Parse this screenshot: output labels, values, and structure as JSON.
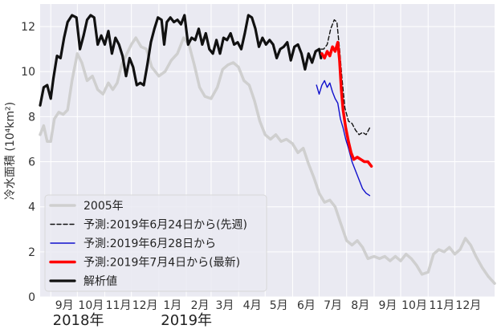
{
  "chart_data": {
    "type": "line",
    "ylabel": "冷水面積 (10⁴km²)",
    "ylim": [
      0,
      13
    ],
    "y_ticks": [
      "0",
      "2",
      "4",
      "6",
      "8",
      "10",
      "12"
    ],
    "y_tick_values": [
      0,
      2,
      4,
      6,
      8,
      10,
      12
    ],
    "xlim": [
      "2018-08-20",
      "2020-01-15"
    ],
    "month_ticks": [
      {
        "date": "2018-09-01",
        "label": "9月"
      },
      {
        "date": "2018-10-01",
        "label": "10月"
      },
      {
        "date": "2018-11-01",
        "label": "11月"
      },
      {
        "date": "2018-12-01",
        "label": "12月"
      },
      {
        "date": "2019-01-01",
        "label": "1月"
      },
      {
        "date": "2019-02-01",
        "label": "2月"
      },
      {
        "date": "2019-03-01",
        "label": "3月"
      },
      {
        "date": "2019-04-01",
        "label": "4月"
      },
      {
        "date": "2019-05-01",
        "label": "5月"
      },
      {
        "date": "2019-06-01",
        "label": "6月"
      },
      {
        "date": "2019-07-01",
        "label": "7月"
      },
      {
        "date": "2019-08-01",
        "label": "8月"
      },
      {
        "date": "2019-09-01",
        "label": "9月"
      },
      {
        "date": "2019-10-01",
        "label": "10月"
      },
      {
        "date": "2019-11-01",
        "label": "11月"
      },
      {
        "date": "2019-12-01",
        "label": "12月"
      }
    ],
    "year_labels": [
      {
        "date": "2018-09-05",
        "label": "2018年"
      },
      {
        "date": "2019-01-05",
        "label": "2019年"
      }
    ],
    "grid": true,
    "legend_position": "bottom-left",
    "series": [
      {
        "name": "2005年",
        "color": "#cfcfcf",
        "style": "solid",
        "points": [
          [
            "2018-08-20",
            7.2
          ],
          [
            "2018-08-24",
            7.6
          ],
          [
            "2018-08-28",
            6.9
          ],
          [
            "2018-09-01",
            6.9
          ],
          [
            "2018-09-05",
            7.9
          ],
          [
            "2018-09-10",
            8.2
          ],
          [
            "2018-09-15",
            8.1
          ],
          [
            "2018-09-20",
            8.3
          ],
          [
            "2018-09-25",
            9.6
          ],
          [
            "2018-10-01",
            10.8
          ],
          [
            "2018-10-06",
            10.4
          ],
          [
            "2018-10-12",
            9.6
          ],
          [
            "2018-10-18",
            9.8
          ],
          [
            "2018-10-24",
            9.2
          ],
          [
            "2018-10-30",
            9.0
          ],
          [
            "2018-11-05",
            9.5
          ],
          [
            "2018-11-10",
            9.2
          ],
          [
            "2018-11-15",
            9.5
          ],
          [
            "2018-11-20",
            10.3
          ],
          [
            "2018-11-26",
            10.8
          ],
          [
            "2018-12-01",
            11.2
          ],
          [
            "2018-12-06",
            11.5
          ],
          [
            "2018-12-12",
            11.1
          ],
          [
            "2018-12-18",
            11.0
          ],
          [
            "2018-12-24",
            10.2
          ],
          [
            "2019-01-01",
            9.8
          ],
          [
            "2019-01-08",
            10.0
          ],
          [
            "2019-01-15",
            10.5
          ],
          [
            "2019-01-22",
            10.8
          ],
          [
            "2019-01-29",
            11.5
          ],
          [
            "2019-02-04",
            11.2
          ],
          [
            "2019-02-10",
            10.3
          ],
          [
            "2019-02-16",
            9.3
          ],
          [
            "2019-02-22",
            8.9
          ],
          [
            "2019-03-01",
            8.8
          ],
          [
            "2019-03-08",
            9.3
          ],
          [
            "2019-03-14",
            10.1
          ],
          [
            "2019-03-20",
            10.3
          ],
          [
            "2019-03-26",
            10.4
          ],
          [
            "2019-04-01",
            10.2
          ],
          [
            "2019-04-07",
            9.6
          ],
          [
            "2019-04-13",
            9.4
          ],
          [
            "2019-04-19",
            8.7
          ],
          [
            "2019-04-25",
            7.8
          ],
          [
            "2019-05-01",
            7.2
          ],
          [
            "2019-05-07",
            7.0
          ],
          [
            "2019-05-13",
            7.2
          ],
          [
            "2019-05-19",
            6.9
          ],
          [
            "2019-05-25",
            7.0
          ],
          [
            "2019-06-01",
            6.8
          ],
          [
            "2019-06-07",
            6.4
          ],
          [
            "2019-06-13",
            6.6
          ],
          [
            "2019-06-19",
            5.9
          ],
          [
            "2019-06-25",
            5.3
          ],
          [
            "2019-07-01",
            4.6
          ],
          [
            "2019-07-07",
            4.2
          ],
          [
            "2019-07-13",
            4.3
          ],
          [
            "2019-07-19",
            4.0
          ],
          [
            "2019-07-25",
            3.3
          ],
          [
            "2019-08-01",
            2.5
          ],
          [
            "2019-08-07",
            2.3
          ],
          [
            "2019-08-13",
            2.5
          ],
          [
            "2019-08-19",
            2.2
          ],
          [
            "2019-08-25",
            1.7
          ],
          [
            "2019-09-01",
            1.8
          ],
          [
            "2019-09-07",
            1.7
          ],
          [
            "2019-09-13",
            1.8
          ],
          [
            "2019-09-19",
            1.6
          ],
          [
            "2019-09-25",
            1.8
          ],
          [
            "2019-10-01",
            1.6
          ],
          [
            "2019-10-07",
            1.9
          ],
          [
            "2019-10-13",
            1.7
          ],
          [
            "2019-10-19",
            1.4
          ],
          [
            "2019-10-25",
            1.0
          ],
          [
            "2019-11-01",
            1.1
          ],
          [
            "2019-11-07",
            1.9
          ],
          [
            "2019-11-13",
            2.1
          ],
          [
            "2019-11-19",
            2.0
          ],
          [
            "2019-11-25",
            2.2
          ],
          [
            "2019-12-01",
            1.9
          ],
          [
            "2019-12-07",
            2.1
          ],
          [
            "2019-12-13",
            2.6
          ],
          [
            "2019-12-19",
            2.3
          ],
          [
            "2019-12-25",
            1.8
          ],
          [
            "2020-01-01",
            1.3
          ],
          [
            "2020-01-08",
            0.9
          ],
          [
            "2020-01-15",
            0.6
          ]
        ]
      },
      {
        "name": "予測:2019年6月24日から(先週)",
        "color": "#111111",
        "style": "dashed",
        "points": [
          [
            "2019-06-24",
            10.6
          ],
          [
            "2019-06-28",
            10.9
          ],
          [
            "2019-07-02",
            11.0
          ],
          [
            "2019-07-06",
            11.0
          ],
          [
            "2019-07-10",
            11.2
          ],
          [
            "2019-07-14",
            11.9
          ],
          [
            "2019-07-18",
            12.3
          ],
          [
            "2019-07-21",
            12.2
          ],
          [
            "2019-07-24",
            11.0
          ],
          [
            "2019-07-27",
            9.6
          ],
          [
            "2019-07-30",
            8.4
          ],
          [
            "2019-08-03",
            7.8
          ],
          [
            "2019-08-07",
            7.7
          ],
          [
            "2019-08-11",
            7.4
          ],
          [
            "2019-08-15",
            7.2
          ],
          [
            "2019-08-19",
            7.3
          ],
          [
            "2019-08-23",
            7.2
          ],
          [
            "2019-08-27",
            7.5
          ]
        ]
      },
      {
        "name": "予測:2019年6月28日から",
        "color": "#1010cc",
        "style": "solid",
        "points": [
          [
            "2019-06-28",
            9.4
          ],
          [
            "2019-07-01",
            9.0
          ],
          [
            "2019-07-04",
            9.4
          ],
          [
            "2019-07-07",
            9.6
          ],
          [
            "2019-07-10",
            9.3
          ],
          [
            "2019-07-13",
            9.5
          ],
          [
            "2019-07-16",
            9.1
          ],
          [
            "2019-07-19",
            8.8
          ],
          [
            "2019-07-22",
            8.6
          ],
          [
            "2019-07-25",
            7.9
          ],
          [
            "2019-07-28",
            7.5
          ],
          [
            "2019-07-31",
            7.0
          ],
          [
            "2019-08-03",
            6.6
          ],
          [
            "2019-08-07",
            6.0
          ],
          [
            "2019-08-11",
            5.6
          ],
          [
            "2019-08-15",
            5.2
          ],
          [
            "2019-08-19",
            4.8
          ],
          [
            "2019-08-23",
            4.6
          ],
          [
            "2019-08-27",
            4.5
          ]
        ]
      },
      {
        "name": "予測:2019年7月4日から(最新)",
        "color": "#ff0000",
        "style": "solid",
        "points": [
          [
            "2019-07-04",
            10.8
          ],
          [
            "2019-07-07",
            10.6
          ],
          [
            "2019-07-10",
            10.9
          ],
          [
            "2019-07-13",
            10.7
          ],
          [
            "2019-07-16",
            11.1
          ],
          [
            "2019-07-19",
            10.9
          ],
          [
            "2019-07-22",
            11.3
          ],
          [
            "2019-07-24",
            10.5
          ],
          [
            "2019-07-26",
            9.2
          ],
          [
            "2019-07-28",
            8.3
          ],
          [
            "2019-07-31",
            7.5
          ],
          [
            "2019-08-03",
            6.9
          ],
          [
            "2019-08-06",
            6.4
          ],
          [
            "2019-08-09",
            6.1
          ],
          [
            "2019-08-13",
            6.2
          ],
          [
            "2019-08-17",
            6.1
          ],
          [
            "2019-08-21",
            6.0
          ],
          [
            "2019-08-25",
            6.0
          ],
          [
            "2019-08-29",
            5.8
          ]
        ]
      },
      {
        "name": "解析値",
        "color": "#111111",
        "style": "solid",
        "points": [
          [
            "2018-08-20",
            8.5
          ],
          [
            "2018-08-24",
            9.3
          ],
          [
            "2018-08-28",
            9.4
          ],
          [
            "2018-09-01",
            8.8
          ],
          [
            "2018-09-04",
            9.7
          ],
          [
            "2018-09-08",
            10.7
          ],
          [
            "2018-09-12",
            10.6
          ],
          [
            "2018-09-16",
            11.5
          ],
          [
            "2018-09-20",
            12.2
          ],
          [
            "2018-09-25",
            12.5
          ],
          [
            "2018-09-30",
            12.4
          ],
          [
            "2018-10-04",
            11.0
          ],
          [
            "2018-10-08",
            11.6
          ],
          [
            "2018-10-12",
            12.3
          ],
          [
            "2018-10-16",
            12.5
          ],
          [
            "2018-10-20",
            12.4
          ],
          [
            "2018-10-24",
            11.2
          ],
          [
            "2018-10-28",
            11.6
          ],
          [
            "2018-11-01",
            11.2
          ],
          [
            "2018-11-05",
            11.8
          ],
          [
            "2018-11-09",
            10.8
          ],
          [
            "2018-11-13",
            11.5
          ],
          [
            "2018-11-17",
            11.2
          ],
          [
            "2018-11-21",
            10.7
          ],
          [
            "2018-11-25",
            9.8
          ],
          [
            "2018-11-29",
            10.6
          ],
          [
            "2018-12-03",
            10.2
          ],
          [
            "2018-12-07",
            9.4
          ],
          [
            "2018-12-11",
            9.5
          ],
          [
            "2018-12-15",
            9.4
          ],
          [
            "2018-12-19",
            10.3
          ],
          [
            "2018-12-23",
            11.3
          ],
          [
            "2018-12-27",
            11.9
          ],
          [
            "2018-12-31",
            12.4
          ],
          [
            "2019-01-04",
            12.3
          ],
          [
            "2019-01-07",
            11.2
          ],
          [
            "2019-01-10",
            12.2
          ],
          [
            "2019-01-14",
            12.4
          ],
          [
            "2019-01-18",
            12.2
          ],
          [
            "2019-01-22",
            12.3
          ],
          [
            "2019-01-26",
            12.1
          ],
          [
            "2019-01-30",
            12.5
          ],
          [
            "2019-02-03",
            11.2
          ],
          [
            "2019-02-07",
            11.5
          ],
          [
            "2019-02-11",
            11.4
          ],
          [
            "2019-02-15",
            11.9
          ],
          [
            "2019-02-19",
            11.2
          ],
          [
            "2019-02-23",
            11.7
          ],
          [
            "2019-02-27",
            11.0
          ],
          [
            "2019-03-03",
            10.8
          ],
          [
            "2019-03-07",
            11.4
          ],
          [
            "2019-03-11",
            10.8
          ],
          [
            "2019-03-15",
            11.5
          ],
          [
            "2019-03-19",
            11.4
          ],
          [
            "2019-03-23",
            11.7
          ],
          [
            "2019-03-27",
            11.2
          ],
          [
            "2019-03-31",
            11.3
          ],
          [
            "2019-04-04",
            11.0
          ],
          [
            "2019-04-08",
            11.7
          ],
          [
            "2019-04-12",
            12.5
          ],
          [
            "2019-04-16",
            12.4
          ],
          [
            "2019-04-20",
            11.9
          ],
          [
            "2019-04-24",
            11.1
          ],
          [
            "2019-04-28",
            11.5
          ],
          [
            "2019-05-02",
            11.2
          ],
          [
            "2019-05-06",
            11.4
          ],
          [
            "2019-05-10",
            11.2
          ],
          [
            "2019-05-14",
            10.6
          ],
          [
            "2019-05-18",
            11.0
          ],
          [
            "2019-05-22",
            11.1
          ],
          [
            "2019-05-26",
            11.3
          ],
          [
            "2019-05-30",
            10.5
          ],
          [
            "2019-06-03",
            11.1
          ],
          [
            "2019-06-07",
            11.2
          ],
          [
            "2019-06-11",
            10.8
          ],
          [
            "2019-06-15",
            10.1
          ],
          [
            "2019-06-19",
            10.8
          ],
          [
            "2019-06-23",
            10.4
          ],
          [
            "2019-06-27",
            10.9
          ],
          [
            "2019-07-01",
            11.0
          ],
          [
            "2019-07-03",
            10.6
          ]
        ]
      }
    ]
  }
}
